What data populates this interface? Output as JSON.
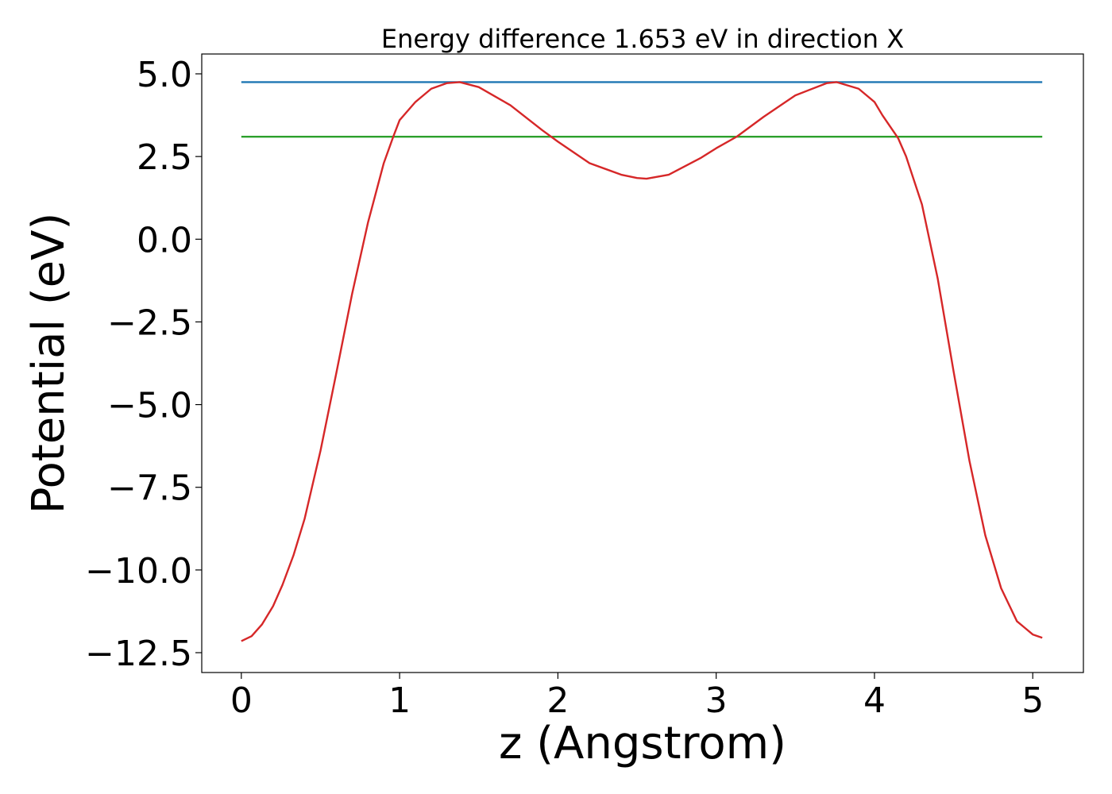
{
  "chart_data": {
    "type": "line",
    "title": "Energy difference 1.653 eV in direction X",
    "xlabel": "z (Angstrom)",
    "ylabel": "Potential (eV)",
    "xlim": [
      -0.25,
      5.32
    ],
    "ylim": [
      -13.1,
      5.6
    ],
    "xticks": [
      0,
      1,
      2,
      3,
      4,
      5
    ],
    "xtick_labels": [
      "0",
      "1",
      "2",
      "3",
      "4",
      "5"
    ],
    "yticks": [
      5.0,
      2.5,
      0.0,
      -2.5,
      -5.0,
      -7.5,
      -10.0,
      -12.5
    ],
    "ytick_labels": [
      "5.0",
      "2.5",
      "0.0",
      "−2.5",
      "−5.0",
      "−7.5",
      "−10.0",
      "−12.5"
    ],
    "grid": false,
    "series": [
      {
        "color": "#1f77b4",
        "x": [
          0,
          5.06
        ],
        "y": [
          4.75,
          4.75
        ]
      },
      {
        "color": "#2ca02c",
        "x": [
          0,
          5.06
        ],
        "y": [
          3.1,
          3.1
        ]
      },
      {
        "color": "#d62728",
        "x": [
          0.0,
          0.065,
          0.13,
          0.2,
          0.26,
          0.33,
          0.4,
          0.5,
          0.6,
          0.7,
          0.8,
          0.9,
          0.96,
          1.0,
          1.1,
          1.2,
          1.3,
          1.38,
          1.5,
          1.7,
          1.9,
          2.0,
          2.2,
          2.4,
          2.5,
          2.56,
          2.7,
          2.9,
          3.0,
          3.13,
          3.3,
          3.5,
          3.7,
          3.76,
          3.9,
          4.0,
          4.05,
          4.15,
          4.2,
          4.3,
          4.4,
          4.5,
          4.6,
          4.7,
          4.8,
          4.9,
          4.95,
          5.0,
          5.06
        ],
        "y": [
          -12.15,
          -12.0,
          -11.65,
          -11.1,
          -10.45,
          -9.55,
          -8.45,
          -6.4,
          -4.05,
          -1.65,
          0.5,
          2.3,
          3.1,
          3.6,
          4.15,
          4.55,
          4.72,
          4.75,
          4.6,
          4.05,
          3.3,
          2.95,
          2.3,
          1.95,
          1.85,
          1.83,
          1.95,
          2.45,
          2.75,
          3.1,
          3.7,
          4.35,
          4.72,
          4.75,
          4.55,
          4.15,
          3.75,
          3.05,
          2.5,
          1.05,
          -1.2,
          -4.0,
          -6.7,
          -8.95,
          -10.55,
          -11.55,
          -11.75,
          -11.95,
          -12.05
        ]
      }
    ]
  }
}
